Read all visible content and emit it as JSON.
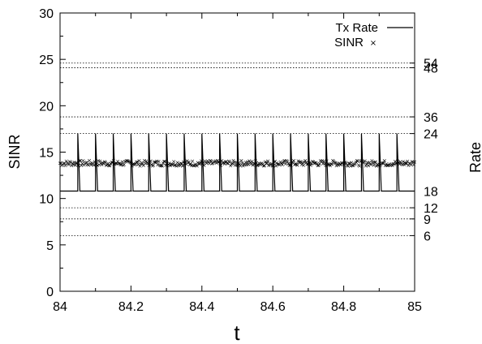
{
  "chart_data": {
    "type": "line",
    "xlabel": "t",
    "ylabel": "SINR",
    "y2label": "Rate",
    "xlim": [
      84,
      85
    ],
    "ylim": [
      0,
      30
    ],
    "xticks": [
      "84",
      "84.2",
      "84.4",
      "84.6",
      "84.8",
      "85"
    ],
    "yticks": [
      "0",
      "5",
      "10",
      "15",
      "20",
      "25",
      "30"
    ],
    "grid": false,
    "legend": {
      "placement": "top-right",
      "entries": [
        "Tx Rate",
        "SINR"
      ]
    },
    "rate_levels": [
      {
        "label": "6",
        "sinr": 6
      },
      {
        "label": "9",
        "sinr": 7.8
      },
      {
        "label": "12",
        "sinr": 9
      },
      {
        "label": "18",
        "sinr": 10.8
      },
      {
        "label": "24",
        "sinr": 17
      },
      {
        "label": "36",
        "sinr": 18.8
      },
      {
        "label": "48",
        "sinr": 24.1
      },
      {
        "label": "54",
        "sinr": 24.6
      }
    ],
    "series": [
      {
        "name": "Tx Rate",
        "style": "line",
        "low": 10.8,
        "high": 17,
        "spike_times": [
          84.05,
          84.1,
          84.15,
          84.2,
          84.25,
          84.3,
          84.35,
          84.4,
          84.45,
          84.5,
          84.55,
          84.6,
          84.65,
          84.7,
          84.75,
          84.8,
          84.85,
          84.9,
          84.95
        ],
        "spike_width": 0.006
      },
      {
        "name": "SINR",
        "style": "points",
        "mean": 13.8,
        "spread": 0.3
      }
    ]
  }
}
